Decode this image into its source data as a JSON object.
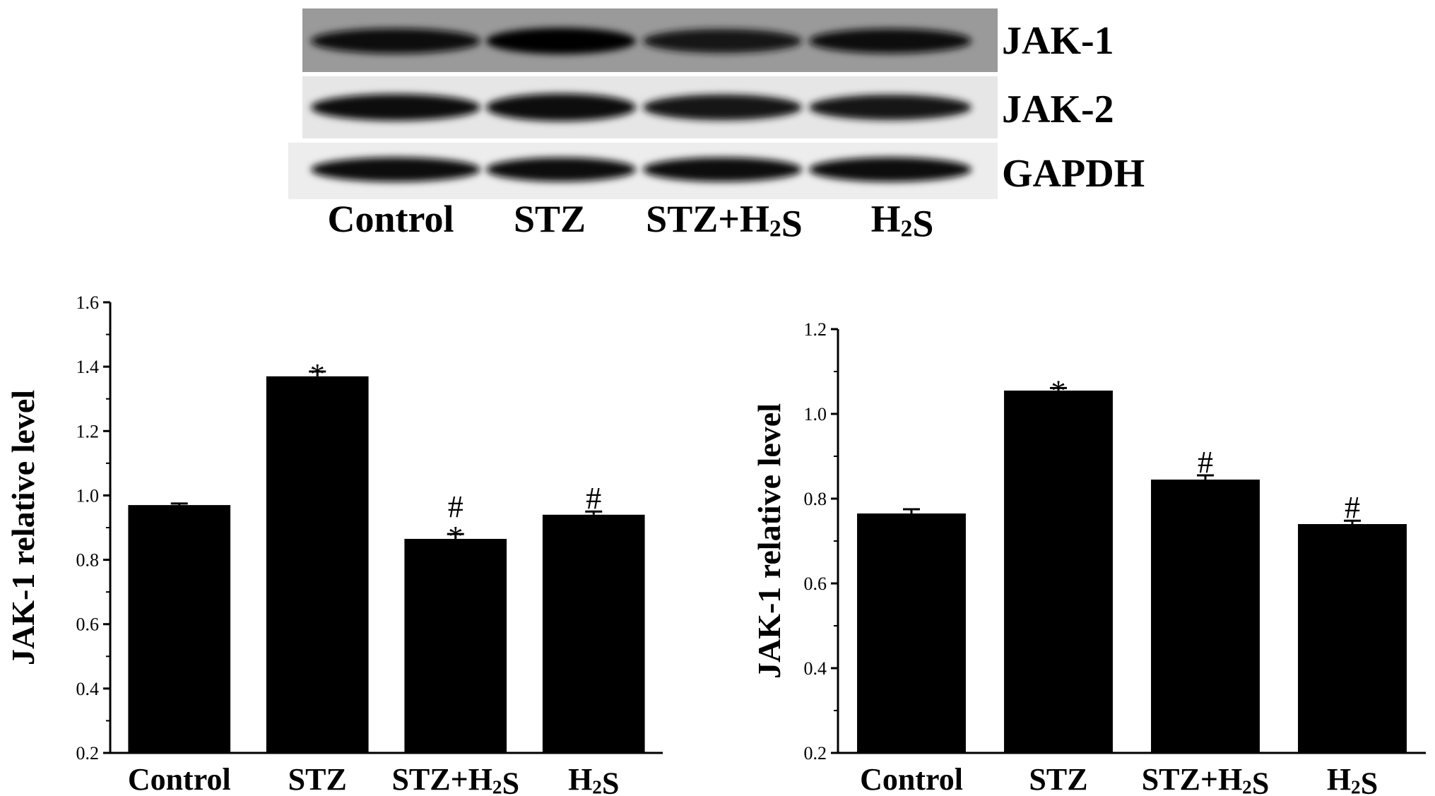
{
  "blot": {
    "bands": [
      {
        "label": "JAK-1",
        "lane_intensity": [
          0.85,
          1.0,
          0.7,
          0.8
        ]
      },
      {
        "label": "JAK-2",
        "lane_intensity": [
          0.85,
          0.95,
          0.75,
          0.7
        ]
      },
      {
        "label": "GAPDH",
        "lane_intensity": [
          0.95,
          0.9,
          0.92,
          0.95
        ]
      }
    ],
    "lanes": [
      "Control",
      "STZ",
      "STZ+H2S",
      "H2S"
    ]
  },
  "chart_data": [
    {
      "type": "bar",
      "title": "",
      "xlabel": "",
      "ylabel": "JAK-1 relative level",
      "ylim": [
        0.2,
        1.6
      ],
      "yticks": [
        0.2,
        0.4,
        0.6,
        0.8,
        1.0,
        1.2,
        1.4,
        1.6
      ],
      "tick_labels": [
        "0.2",
        "0.4",
        "0.6",
        "0.8",
        "1.0",
        "1.2",
        "1.4",
        "1.6"
      ],
      "categories": [
        "Control",
        "STZ",
        "STZ+H2S",
        "H2S"
      ],
      "values": [
        0.97,
        1.37,
        0.865,
        0.94
      ],
      "errors": [
        0.005,
        0.015,
        0.015,
        0.01
      ],
      "annotations": [
        "",
        "*",
        "#\n*",
        "#"
      ],
      "grid": false,
      "bar_color": "#000000"
    },
    {
      "type": "bar",
      "title": "",
      "xlabel": "",
      "ylabel": "JAK-1 relative level",
      "ylim": [
        0.2,
        1.2
      ],
      "yticks": [
        0.2,
        0.4,
        0.6,
        0.8,
        1.0,
        1.2
      ],
      "tick_labels": [
        "0.2",
        "0.4",
        "0.6",
        "0.8",
        "1.0",
        "1.2"
      ],
      "categories": [
        "Control",
        "STZ",
        "STZ+H2S",
        "H2S"
      ],
      "values": [
        0.765,
        1.055,
        0.845,
        0.74
      ],
      "errors": [
        0.01,
        0.006,
        0.01,
        0.008
      ],
      "annotations": [
        "",
        "*",
        "#",
        "#"
      ],
      "grid": false,
      "bar_color": "#000000"
    }
  ]
}
